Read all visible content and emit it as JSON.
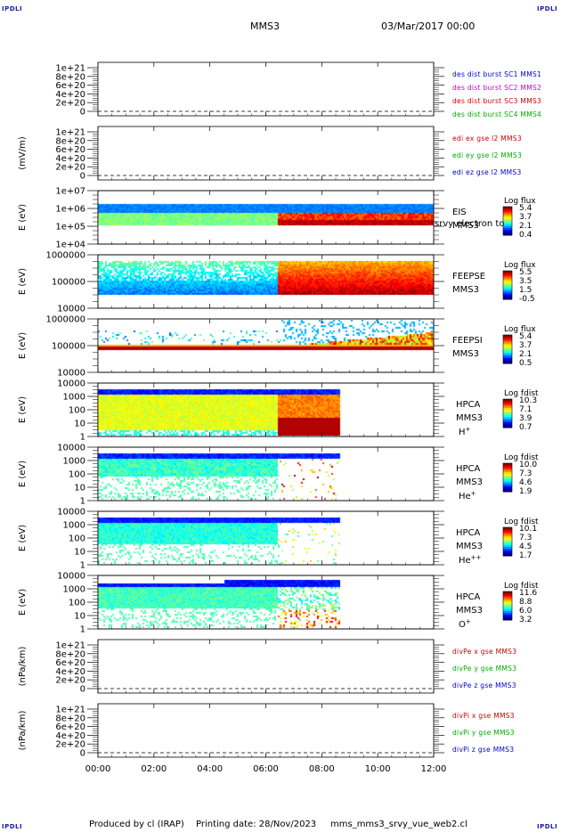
{
  "header": {
    "title": "MMS3",
    "datetime": "03/Mar/2017 00:00",
    "corner_label": "IPDLI"
  },
  "footer": {
    "produced_by": "Produced by cl (IRAP)",
    "printing_date": "Printing date: 28/Nov/2023",
    "script_name": "mms_mms3_srvy_vue_web2.cl"
  },
  "x_axis": {
    "ticks": [
      "00:00",
      "02:00",
      "04:00",
      "06:00",
      "08:00",
      "10:00",
      "12:00"
    ],
    "range_hours": [
      0,
      12
    ]
  },
  "chart_data": [
    {
      "type": "line",
      "panel": "des-dist",
      "ylabel": "",
      "yticks": [
        "1e+21",
        "8e+20",
        "6e+20",
        "4e+20",
        "2e+20",
        "0"
      ],
      "ylim": [
        0,
        1.1e+21
      ],
      "dashed_zero": true,
      "series": [
        {
          "name": "des dist burst SC1 MMS1",
          "color": "#0000cc"
        },
        {
          "name": "des dist burst SC2 MMS2",
          "color": "#cc00cc"
        },
        {
          "name": "des dist burst SC3 MMS3",
          "color": "#cc0000"
        },
        {
          "name": "des dist burst SC4 MMS4",
          "color": "#00aa00"
        }
      ]
    },
    {
      "type": "line",
      "panel": "edi",
      "ylabel": "(mV/m)",
      "yticks": [
        "1e+21",
        "8e+20",
        "6e+20",
        "4e+20",
        "2e+20",
        "0"
      ],
      "ylim": [
        0,
        1.1e+21
      ],
      "dashed_zero": true,
      "series": [
        {
          "name": "edi ex gse l2 MMS3",
          "color": "#cc0000"
        },
        {
          "name": "edi ey gse l2 MMS3",
          "color": "#00aa00"
        },
        {
          "name": "edi ez gse l2 MMS3",
          "color": "#0000cc"
        }
      ]
    },
    {
      "type": "heatmap",
      "panel": "eis",
      "ylabel": "E (eV)",
      "yticks": [
        "1e+07",
        "1e+06",
        "1e+05",
        "1e+04"
      ],
      "label_lines": [
        "EIS",
        "MMS3"
      ],
      "overlay_text": "srvy electron to",
      "colorbar_title": "Log flux",
      "colorbar_ticks": [
        "5.4",
        "3.7",
        "2.1",
        "0.4"
      ],
      "coverage_hours": [
        0,
        12
      ],
      "regimes": [
        {
          "from_h": 0,
          "to_h": 6.4,
          "upper": "blue",
          "lower": "cyan"
        },
        {
          "from_h": 6.4,
          "to_h": 12,
          "upper": "blue",
          "lower": "red"
        }
      ]
    },
    {
      "type": "heatmap",
      "panel": "feepse",
      "ylabel": "E (eV)",
      "yticks": [
        "1000000",
        "100000",
        "10000"
      ],
      "label_lines": [
        "FEEPSE",
        "MMS3"
      ],
      "colorbar_title": "Log flux",
      "colorbar_ticks": [
        "5.5",
        "3.5",
        "1.5",
        "-0.5"
      ],
      "coverage_hours": [
        0,
        12
      ]
    },
    {
      "type": "heatmap",
      "panel": "feepsi",
      "ylabel": "E (eV)",
      "yticks": [
        "1000000",
        "100000",
        "10000"
      ],
      "label_lines": [
        "FEEPSI",
        "MMS3"
      ],
      "colorbar_title": "Log flux",
      "colorbar_ticks": [
        "5.4",
        "3.7",
        "2.1",
        "0.5"
      ],
      "coverage_hours": [
        0,
        12
      ]
    },
    {
      "type": "heatmap",
      "panel": "hpca-h",
      "ylabel": "E (eV)",
      "yticks": [
        "10000",
        "1000",
        "100",
        "10",
        "1"
      ],
      "label_lines": [
        "HPCA",
        "MMS3"
      ],
      "species": "H",
      "species_charge": "+",
      "colorbar_title": "Log fdist",
      "colorbar_ticks": [
        "10.3",
        "7.1",
        "3.9",
        "0.7"
      ],
      "coverage_hours": [
        0,
        8.6
      ]
    },
    {
      "type": "heatmap",
      "panel": "hpca-he",
      "ylabel": "E (eV)",
      "yticks": [
        "10000",
        "1000",
        "100",
        "10",
        "1"
      ],
      "label_lines": [
        "HPCA",
        "MMS3"
      ],
      "species": "He",
      "species_charge": "+",
      "colorbar_title": "Log fdist",
      "colorbar_ticks": [
        "10.0",
        "7.3",
        "4.6",
        "1.9"
      ],
      "coverage_hours": [
        0,
        8.6
      ]
    },
    {
      "type": "heatmap",
      "panel": "hpca-hepp",
      "ylabel": "E (eV)",
      "yticks": [
        "10000",
        "1000",
        "100",
        "10",
        "1"
      ],
      "label_lines": [
        "HPCA",
        "MMS3"
      ],
      "species": "He",
      "species_charge": "++",
      "colorbar_title": "Log fdist",
      "colorbar_ticks": [
        "10.1",
        "7.3",
        "4.5",
        "1.7"
      ],
      "coverage_hours": [
        0,
        8.6
      ]
    },
    {
      "type": "heatmap",
      "panel": "hpca-o",
      "ylabel": "E (eV)",
      "yticks": [
        "10000",
        "1000",
        "100",
        "10",
        "1"
      ],
      "label_lines": [
        "HPCA",
        "MMS3"
      ],
      "species": "O",
      "species_charge": "+",
      "colorbar_title": "Log fdist",
      "colorbar_ticks": [
        "11.6",
        "8.8",
        "6.0",
        "3.2"
      ],
      "coverage_hours": [
        0,
        8.6
      ]
    },
    {
      "type": "line",
      "panel": "divpe",
      "ylabel": "(nPa/km)",
      "yticks": [
        "1e+21",
        "8e+20",
        "6e+20",
        "4e+20",
        "2e+20",
        "0"
      ],
      "ylim": [
        0,
        1.1e+21
      ],
      "dashed_zero": true,
      "series": [
        {
          "name": "divPe x gse MMS3",
          "color": "#cc0000"
        },
        {
          "name": "divPe y gse MMS3",
          "color": "#00aa00"
        },
        {
          "name": "divPe z gse MMS3",
          "color": "#0000cc"
        }
      ]
    },
    {
      "type": "line",
      "panel": "divpi",
      "ylabel": "(nPa/km)",
      "yticks": [
        "1e+21",
        "8e+20",
        "6e+20",
        "4e+20",
        "2e+20",
        "0"
      ],
      "ylim": [
        0,
        1.1e+21
      ],
      "dashed_zero": true,
      "series": [
        {
          "name": "divPi x gse MMS3",
          "color": "#cc0000"
        },
        {
          "name": "divPi y gse MMS3",
          "color": "#00aa00"
        },
        {
          "name": "divPi z gse MMS3",
          "color": "#0000cc"
        }
      ]
    }
  ]
}
